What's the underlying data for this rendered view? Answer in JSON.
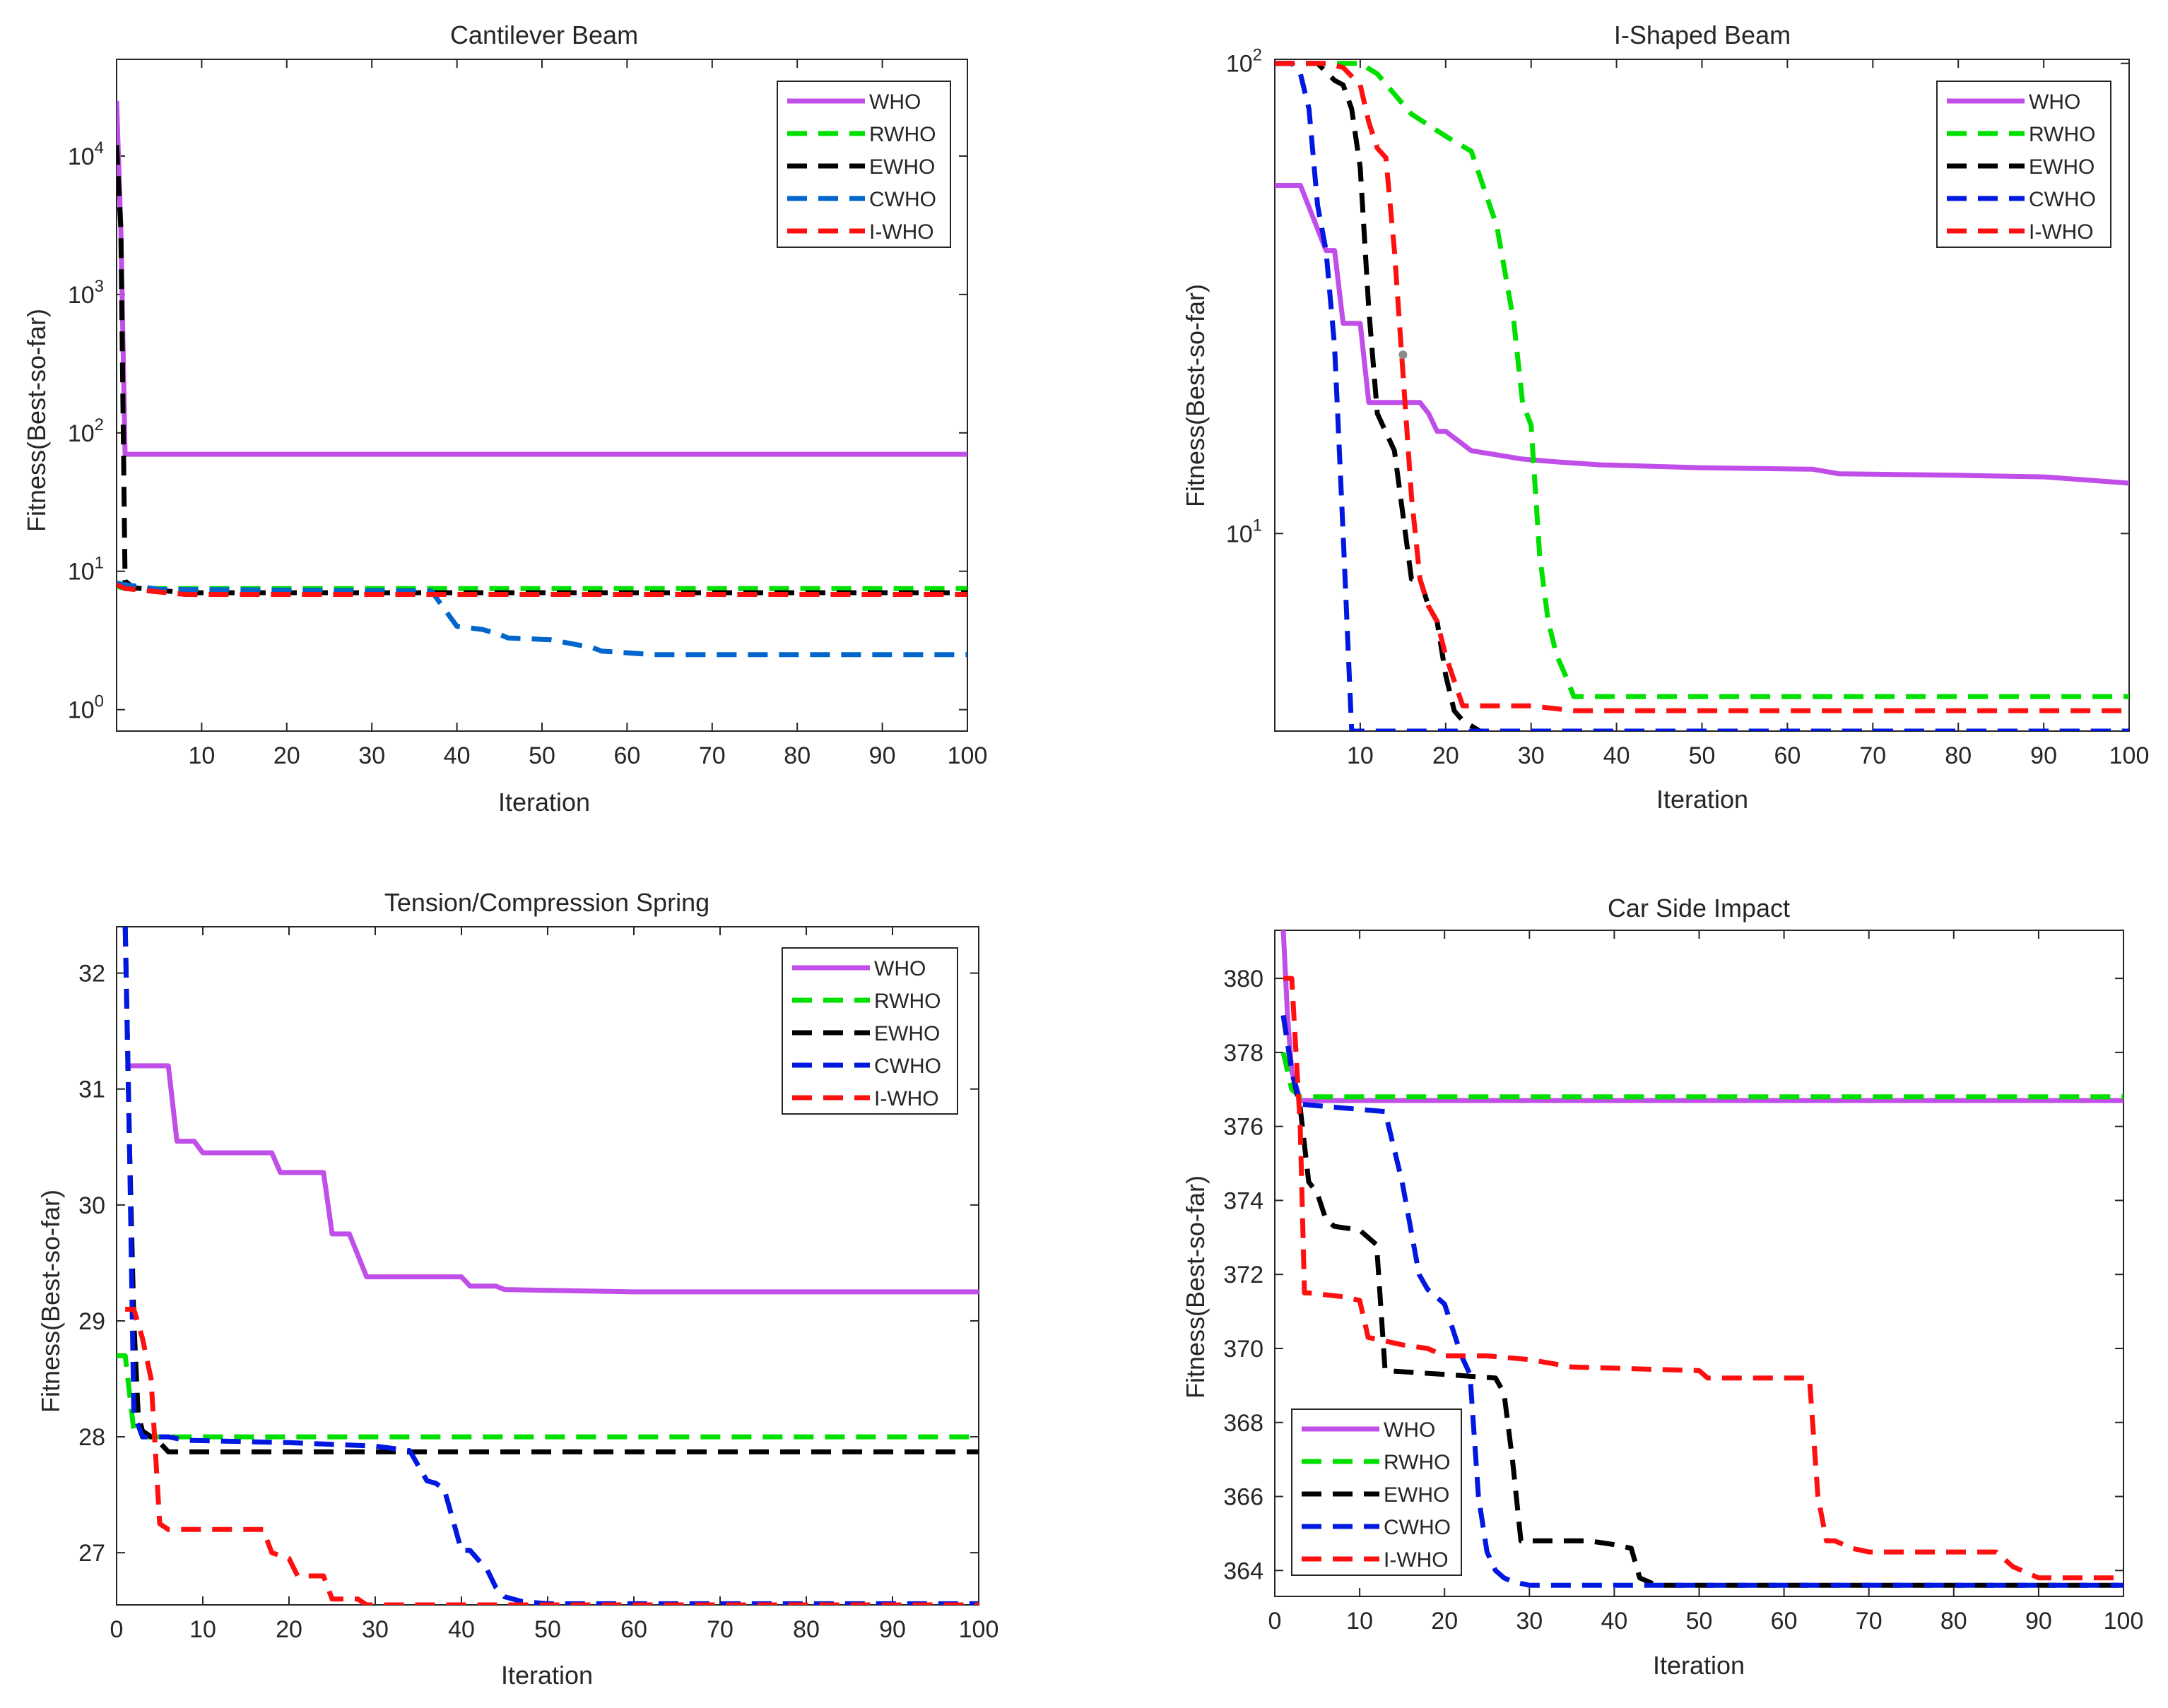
{
  "colors": {
    "WHO": "#c04ee8",
    "RWHO": "#00e000",
    "EWHO": "#000000",
    "CWHO_blue": "#0018e0",
    "CWHO_steel": "#0066cc",
    "I-WHO": "#ff1010"
  },
  "chart_data": [
    {
      "id": "cantilever",
      "type": "line",
      "title": "Cantilever Beam",
      "xlabel": "Iteration",
      "ylabel": "Fitness(Best-so-far)",
      "yscale": "log",
      "xlim": [
        0,
        100
      ],
      "ylim": [
        0.7,
        50000
      ],
      "xticks": [
        10,
        20,
        30,
        40,
        50,
        60,
        70,
        80,
        90,
        100
      ],
      "xtick_labels": [
        "10",
        "20",
        "30",
        "40",
        "50",
        "60",
        "70",
        "80",
        "90",
        "100"
      ],
      "yticks": [
        1,
        10,
        100,
        1000,
        10000
      ],
      "ytick_labels": [
        {
          "base": "10",
          "exp": "0"
        },
        {
          "base": "10",
          "exp": "1"
        },
        {
          "base": "10",
          "exp": "2"
        },
        {
          "base": "10",
          "exp": "3"
        },
        {
          "base": "10",
          "exp": "4"
        }
      ],
      "legend": "top-right",
      "legend_entries": [
        "WHO",
        "RWHO",
        "EWHO",
        "CWHO",
        "I-WHO"
      ],
      "series": [
        {
          "name": "WHO",
          "color": "#c04ee8",
          "dash": "solid",
          "x": [
            0,
            0.5,
            1,
            100
          ],
          "y": [
            25000,
            3000,
            70,
            70
          ]
        },
        {
          "name": "RWHO",
          "color": "#00e000",
          "dash": "dash",
          "x": [
            0,
            1,
            100
          ],
          "y": [
            7.8,
            7.5,
            7.5
          ]
        },
        {
          "name": "EWHO",
          "color": "#000000",
          "dash": "dash",
          "x": [
            0,
            0.5,
            1,
            2,
            8,
            100
          ],
          "y": [
            12000,
            3000,
            8.5,
            7.6,
            7.0,
            7.0
          ]
        },
        {
          "name": "CWHO",
          "color": "#0066cc",
          "dash": "dash",
          "x": [
            0,
            1,
            5,
            37,
            40,
            43,
            45,
            46,
            51,
            56,
            57,
            63,
            100
          ],
          "y": [
            8.2,
            8.0,
            7.4,
            7.2,
            4.0,
            3.8,
            3.5,
            3.3,
            3.2,
            2.8,
            2.65,
            2.5,
            2.5
          ]
        },
        {
          "name": "I-WHO",
          "color": "#ff1010",
          "dash": "dash",
          "x": [
            0,
            1,
            8,
            100
          ],
          "y": [
            8.0,
            7.5,
            6.8,
            6.8
          ]
        }
      ]
    },
    {
      "id": "ishaped",
      "type": "line",
      "title": "I-Shaped Beam",
      "xlabel": "Iteration",
      "ylabel": "Fitness(Best-so-far)",
      "yscale": "log",
      "xlim": [
        0,
        100
      ],
      "ylim": [
        3.8,
        102
      ],
      "xticks": [
        10,
        20,
        30,
        40,
        50,
        60,
        70,
        80,
        90,
        100
      ],
      "xtick_labels": [
        "10",
        "20",
        "30",
        "40",
        "50",
        "60",
        "70",
        "80",
        "90",
        "100"
      ],
      "yticks": [
        10,
        100
      ],
      "ytick_labels": [
        {
          "base": "10",
          "exp": "1"
        },
        {
          "base": "10",
          "exp": "2"
        }
      ],
      "legend": "top-right",
      "legend_entries": [
        "WHO",
        "RWHO",
        "EWHO",
        "CWHO",
        "I-WHO"
      ],
      "series": [
        {
          "name": "WHO",
          "color": "#c04ee8",
          "dash": "solid",
          "x": [
            0,
            3,
            6,
            7,
            8,
            10,
            11,
            17,
            18,
            19,
            20,
            23,
            25,
            29,
            33,
            38,
            50,
            63,
            66,
            80,
            90,
            95,
            100
          ],
          "y": [
            55,
            55,
            40,
            40,
            28,
            28,
            19,
            19,
            18,
            16.5,
            16.5,
            15,
            14.8,
            14.4,
            14.2,
            14.0,
            13.8,
            13.7,
            13.4,
            13.3,
            13.2,
            13.0,
            12.8
          ]
        },
        {
          "name": "RWHO",
          "color": "#00e000",
          "dash": "dash",
          "x": [
            0,
            10,
            12,
            14,
            16,
            20,
            23,
            26,
            28,
            29,
            30,
            31,
            32,
            33,
            34,
            35,
            100
          ],
          "y": [
            100,
            100,
            95,
            86,
            78,
            70,
            65,
            45,
            28,
            19,
            17,
            9,
            6.5,
            5.5,
            5.0,
            4.5,
            4.5
          ]
        },
        {
          "name": "EWHO",
          "color": "#000000",
          "dash": "dash",
          "x": [
            0,
            5,
            7,
            8,
            9,
            10,
            11,
            12,
            14,
            16,
            17,
            18,
            19,
            20,
            21,
            22,
            24,
            100
          ],
          "y": [
            100,
            100,
            92,
            90,
            80,
            60,
            30,
            18,
            15,
            8,
            8,
            7,
            6.5,
            5,
            4.2,
            4.0,
            3.8,
            3.8
          ]
        },
        {
          "name": "CWHO",
          "color": "#0018e0",
          "dash": "dash",
          "x": [
            0,
            2,
            3,
            4,
            5,
            6,
            7,
            8,
            9,
            100
          ],
          "y": [
            100,
            100,
            95,
            80,
            50,
            40,
            25,
            10,
            3.8,
            3.8
          ]
        },
        {
          "name": "I-WHO",
          "color": "#ff1010",
          "dash": "dash",
          "x": [
            0,
            6,
            8,
            10,
            11,
            12,
            13,
            14,
            15,
            16,
            17,
            18,
            19,
            20,
            22,
            30,
            35,
            100
          ],
          "y": [
            100,
            100,
            98,
            90,
            75,
            66,
            63,
            40,
            22,
            12,
            8,
            7,
            6.5,
            5.5,
            4.3,
            4.3,
            4.2,
            4.2
          ]
        }
      ],
      "marker": {
        "x": 15,
        "y": 24,
        "color": "#8a8a8a"
      }
    },
    {
      "id": "spring",
      "type": "line",
      "title": "Tension/Compression Spring",
      "xlabel": "Iteration",
      "ylabel": "Fitness(Best-so-far)",
      "yscale": "linear",
      "xlim": [
        0,
        100
      ],
      "ylim": [
        26.55,
        32.4
      ],
      "xticks": [
        0,
        10,
        20,
        30,
        40,
        50,
        60,
        70,
        80,
        90,
        100
      ],
      "xtick_labels": [
        "0",
        "10",
        "20",
        "30",
        "40",
        "50",
        "60",
        "70",
        "80",
        "90",
        "100"
      ],
      "yticks": [
        27,
        28,
        29,
        30,
        31,
        32
      ],
      "ytick_labels": [
        "27",
        "28",
        "29",
        "30",
        "31",
        "32"
      ],
      "legend": "top-right",
      "legend_entries": [
        "WHO",
        "RWHO",
        "EWHO",
        "CWHO",
        "I-WHO"
      ],
      "series": [
        {
          "name": "WHO",
          "color": "#c04ee8",
          "dash": "solid",
          "x": [
            1,
            2,
            6,
            7,
            9,
            10,
            18,
            19,
            24,
            25,
            27,
            29,
            40,
            41,
            44,
            45,
            60,
            100
          ],
          "y": [
            31.2,
            31.2,
            31.2,
            30.55,
            30.55,
            30.45,
            30.45,
            30.28,
            30.28,
            29.75,
            29.75,
            29.38,
            29.38,
            29.3,
            29.3,
            29.27,
            29.25,
            29.25
          ]
        },
        {
          "name": "RWHO",
          "color": "#00e000",
          "dash": "dash",
          "x": [
            0,
            1,
            2,
            3,
            100
          ],
          "y": [
            28.7,
            28.7,
            28.05,
            28.0,
            28.0
          ]
        },
        {
          "name": "EWHO",
          "color": "#000000",
          "dash": "dash",
          "x": [
            1,
            1.5,
            2,
            2.5,
            3,
            5,
            6,
            100
          ],
          "y": [
            32.4,
            30.5,
            29.0,
            28.2,
            28.05,
            27.95,
            27.87,
            27.87
          ]
        },
        {
          "name": "CWHO",
          "color": "#0018e0",
          "dash": "dash",
          "x": [
            1,
            1.5,
            2,
            3,
            6,
            8,
            20,
            30,
            34,
            36,
            37,
            38,
            40,
            41,
            43,
            44,
            45,
            47,
            50,
            100
          ],
          "y": [
            32.4,
            30.5,
            28.2,
            28.0,
            28.0,
            27.97,
            27.95,
            27.92,
            27.88,
            27.62,
            27.6,
            27.55,
            27.02,
            27.02,
            26.85,
            26.7,
            26.62,
            26.58,
            26.56,
            26.56
          ]
        },
        {
          "name": "I-WHO",
          "color": "#ff1010",
          "dash": "dash",
          "x": [
            1,
            2,
            3,
            4,
            5,
            6,
            17,
            18,
            20,
            21,
            24,
            25,
            28,
            29,
            40,
            100
          ],
          "y": [
            29.1,
            29.1,
            28.85,
            28.5,
            27.25,
            27.2,
            27.2,
            27.0,
            26.95,
            26.8,
            26.8,
            26.6,
            26.6,
            26.55,
            26.55,
            26.55
          ]
        }
      ]
    },
    {
      "id": "carside",
      "type": "line",
      "title": "Car Side Impact",
      "xlabel": "Iteration",
      "ylabel": "Fitness(Best-so-far)",
      "yscale": "linear",
      "xlim": [
        0,
        100
      ],
      "ylim": [
        363.3,
        381.3
      ],
      "xticks": [
        0,
        10,
        20,
        30,
        40,
        50,
        60,
        70,
        80,
        90,
        100
      ],
      "xtick_labels": [
        "0",
        "10",
        "20",
        "30",
        "40",
        "50",
        "60",
        "70",
        "80",
        "90",
        "100"
      ],
      "yticks": [
        364,
        366,
        368,
        370,
        372,
        374,
        376,
        378,
        380
      ],
      "ytick_labels": [
        "364",
        "366",
        "368",
        "370",
        "372",
        "374",
        "376",
        "378",
        "380"
      ],
      "legend": "bottom-left",
      "legend_entries": [
        "WHO",
        "RWHO",
        "EWHO",
        "CWHO",
        "I-WHO"
      ],
      "series": [
        {
          "name": "WHO",
          "color": "#c04ee8",
          "dash": "solid",
          "x": [
            1,
            1.5,
            2,
            3,
            100
          ],
          "y": [
            381.3,
            379.0,
            377.5,
            376.7,
            376.7
          ]
        },
        {
          "name": "RWHO",
          "color": "#00e000",
          "dash": "dash",
          "x": [
            1,
            2,
            3,
            100
          ],
          "y": [
            378.0,
            377.0,
            376.8,
            376.8
          ]
        },
        {
          "name": "EWHO",
          "color": "#000000",
          "dash": "dash",
          "x": [
            1,
            2,
            3,
            4,
            5,
            6,
            7,
            10,
            12,
            13,
            20,
            26,
            27,
            28,
            29,
            30,
            37,
            40,
            42,
            43,
            45,
            100
          ],
          "y": [
            379.0,
            377.5,
            376.5,
            374.5,
            374.2,
            373.5,
            373.3,
            373.2,
            372.8,
            369.4,
            369.3,
            369.2,
            368.8,
            367.0,
            364.8,
            364.8,
            364.8,
            364.7,
            364.6,
            363.8,
            363.6,
            363.6
          ]
        },
        {
          "name": "CWHO",
          "color": "#0018e0",
          "dash": "dash",
          "x": [
            1,
            2,
            3,
            13,
            15,
            17,
            18,
            20,
            22,
            23,
            24,
            25,
            26,
            27,
            28,
            30,
            100
          ],
          "y": [
            379.0,
            377.5,
            376.6,
            376.4,
            374.5,
            372.0,
            371.6,
            371.2,
            369.8,
            369.3,
            366.0,
            364.5,
            364.0,
            363.8,
            363.7,
            363.6,
            363.6
          ]
        },
        {
          "name": "I-WHO",
          "color": "#ff1010",
          "dash": "dash",
          "x": [
            1,
            2,
            3,
            3.5,
            4,
            8,
            10,
            11,
            13,
            15,
            18,
            20,
            25,
            30,
            35,
            50,
            51,
            60,
            63,
            64,
            65,
            66,
            68,
            70,
            85,
            87,
            88,
            89,
            90,
            100
          ],
          "y": [
            380.0,
            380.0,
            376.0,
            371.5,
            371.5,
            371.4,
            371.3,
            370.3,
            370.2,
            370.1,
            370.0,
            369.8,
            369.8,
            369.7,
            369.5,
            369.4,
            369.2,
            369.2,
            369.2,
            366.0,
            364.8,
            364.8,
            364.6,
            364.5,
            364.5,
            364.1,
            364.0,
            363.9,
            363.8,
            363.8
          ]
        }
      ]
    }
  ]
}
